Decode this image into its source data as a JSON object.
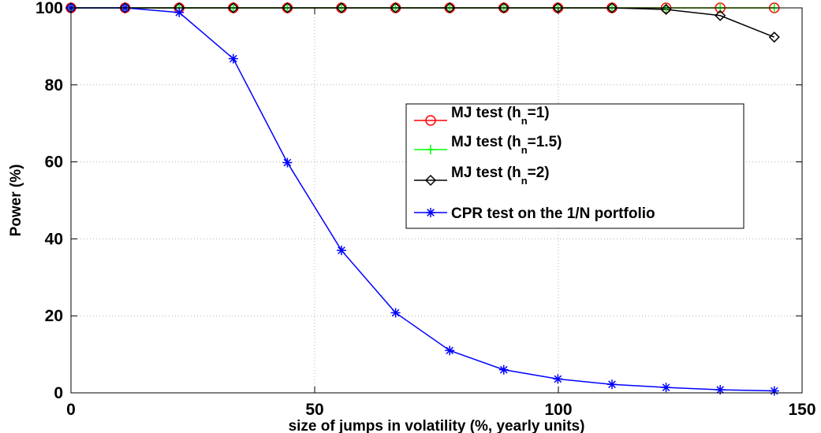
{
  "chart_data": {
    "type": "line",
    "xlabel": "size of jumps in volatility (%, yearly units)",
    "ylabel": "Power (%)",
    "xlim": [
      0,
      150
    ],
    "ylim": [
      0,
      100
    ],
    "xticks": [
      0,
      50,
      100,
      150
    ],
    "yticks": [
      0,
      20,
      40,
      60,
      80,
      100
    ],
    "grid": true,
    "legend_position": "center-right",
    "x": [
      0,
      11.1,
      22.2,
      33.3,
      44.4,
      55.5,
      66.6,
      77.7,
      88.8,
      99.9,
      111,
      122.1,
      133.2,
      144.3
    ],
    "series": [
      {
        "name": "MJ test (h=1)",
        "legend_main": "MJ test (h",
        "legend_sub": "n",
        "legend_tail": "=1)",
        "color": "#ff0000",
        "marker": "circle",
        "values": [
          100,
          100,
          100,
          100,
          100,
          100,
          100,
          100,
          100,
          100,
          100,
          100,
          100,
          100
        ]
      },
      {
        "name": "MJ test (h=1.5)",
        "legend_main": "MJ test (h",
        "legend_sub": "n",
        "legend_tail": "=1.5)",
        "color": "#00ff00",
        "marker": "plus",
        "values": [
          100,
          100,
          100,
          100,
          100,
          100,
          100,
          100,
          100,
          100,
          100,
          100,
          100,
          100
        ]
      },
      {
        "name": "MJ test (h=2)",
        "legend_main": "MJ test (h",
        "legend_sub": "n",
        "legend_tail": "=2)",
        "color": "#000000",
        "marker": "diamond",
        "values": [
          100,
          100,
          100,
          100,
          100,
          100,
          100,
          100,
          100,
          100,
          100,
          99.6,
          98,
          92.4
        ]
      },
      {
        "name": "CPR test on the 1/N portfolio",
        "legend_main": "CPR test on the 1/N portfolio",
        "legend_sub": "",
        "legend_tail": "",
        "color": "#0000ff",
        "marker": "asterisk",
        "values": [
          100,
          100,
          98.8,
          86.8,
          59.8,
          37,
          20.8,
          11,
          6,
          3.6,
          2.2,
          1.4,
          0.8,
          0.5
        ]
      }
    ]
  }
}
